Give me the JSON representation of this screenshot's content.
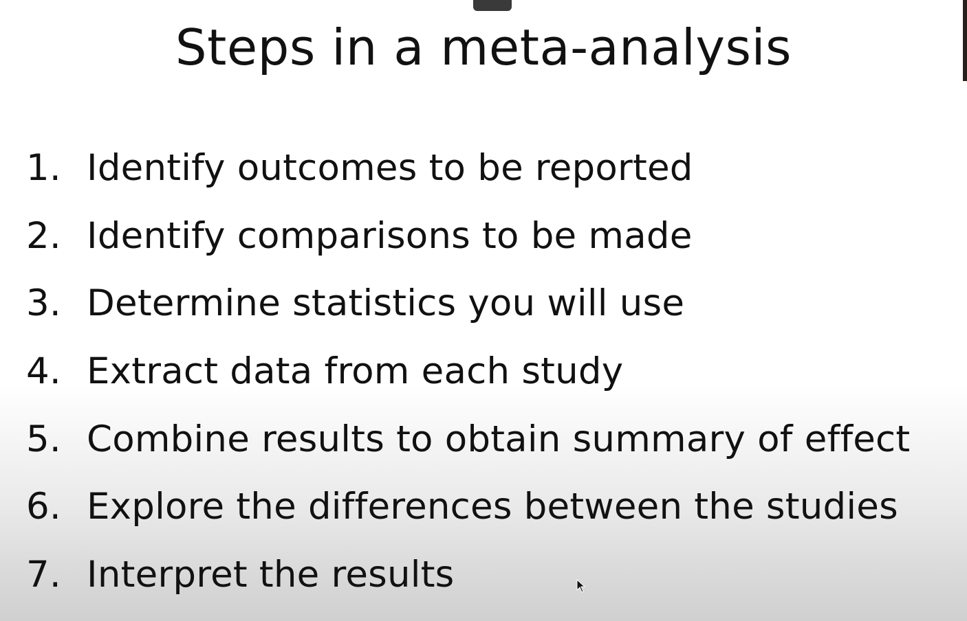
{
  "slide": {
    "title": "Steps in a meta-analysis",
    "steps": [
      {
        "number": "1.",
        "text": "Identify outcomes to be reported"
      },
      {
        "number": "2.",
        "text": "Identify comparisons to be made"
      },
      {
        "number": "3.",
        "text": "Determine statistics you will use"
      },
      {
        "number": "4.",
        "text": "Extract data from each study"
      },
      {
        "number": "5.",
        "text": "Combine results to obtain summary of effect"
      },
      {
        "number": "6.",
        "text": "Explore the differences between the studies"
      },
      {
        "number": "7.",
        "text": "Interpret the results"
      }
    ]
  },
  "icons": {
    "cursor": "mouse-pointer-icon"
  },
  "colors": {
    "text": "#111111",
    "background": "#ffffff"
  }
}
